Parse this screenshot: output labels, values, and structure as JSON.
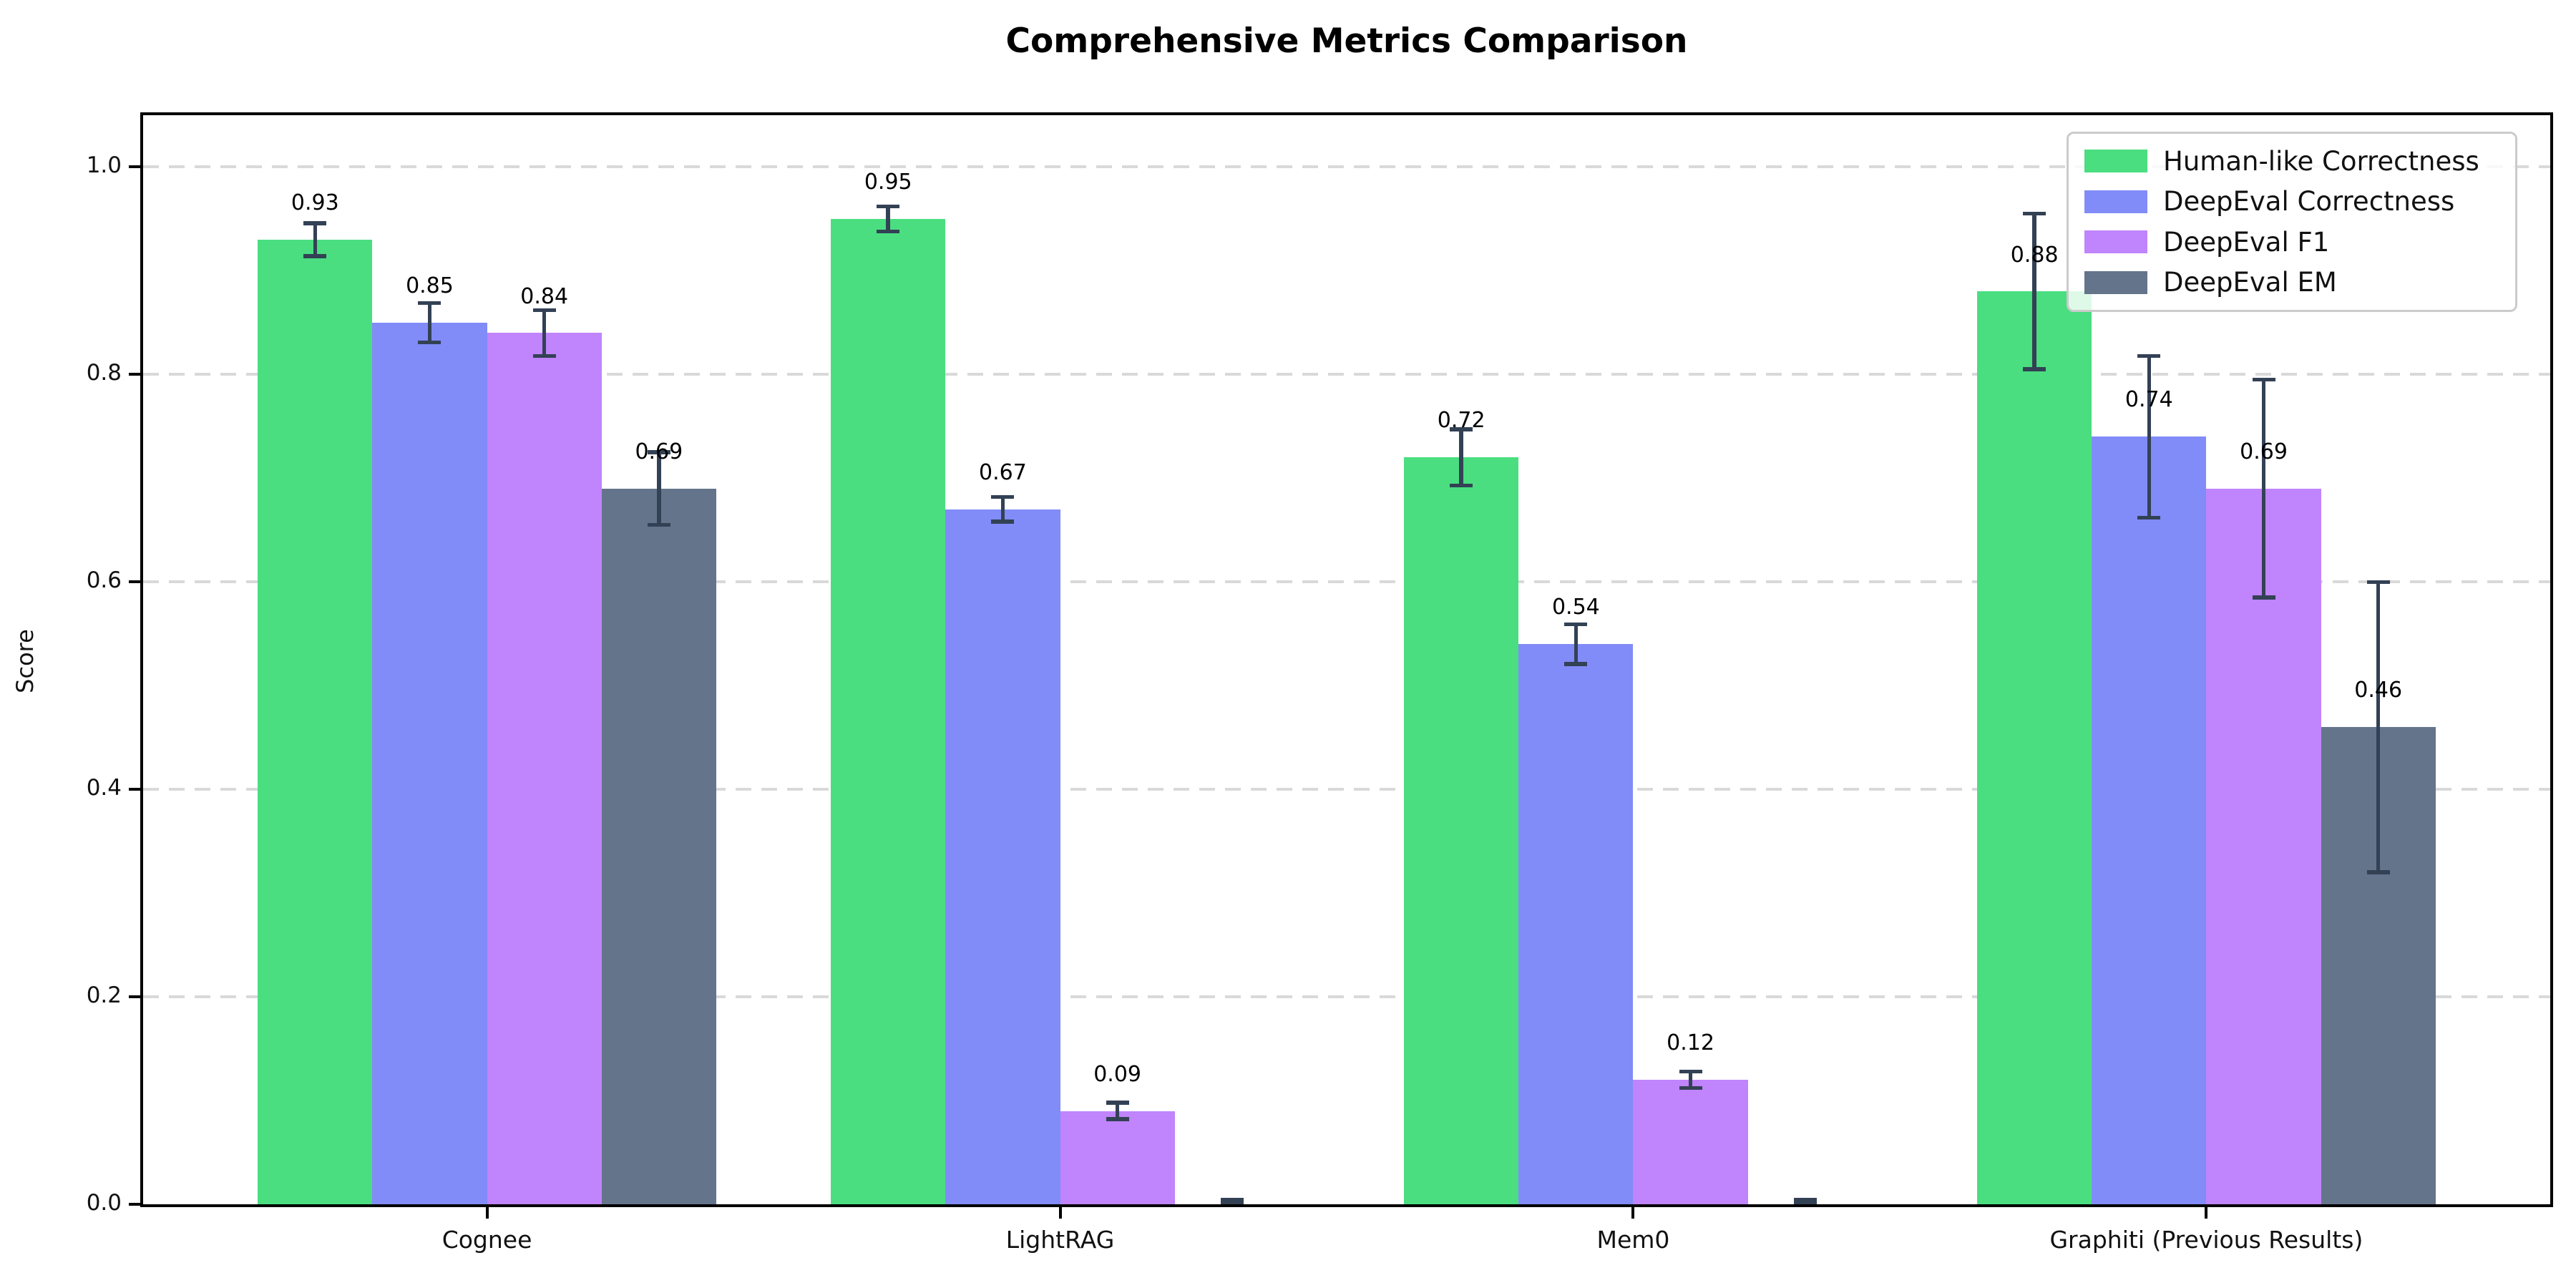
{
  "chart_data": {
    "type": "bar",
    "title": "Comprehensive Metrics Comparison",
    "xlabel": "",
    "ylabel": "Score",
    "categories": [
      "Cognee",
      "LightRAG",
      "Mem0",
      "Graphiti (Previous Results)"
    ],
    "series": [
      {
        "name": "Human-like Correctness",
        "color": "#4ade80",
        "values": [
          0.93,
          0.95,
          0.72,
          0.88
        ],
        "errors": [
          0.016,
          0.012,
          0.027,
          0.075
        ],
        "labels": [
          "0.93",
          "0.95",
          "0.72",
          "0.88"
        ]
      },
      {
        "name": "DeepEval Correctness",
        "color": "#818cf8",
        "values": [
          0.85,
          0.67,
          0.54,
          0.74
        ],
        "errors": [
          0.019,
          0.012,
          0.019,
          0.078
        ],
        "labels": [
          "0.85",
          "0.67",
          "0.54",
          "0.74"
        ]
      },
      {
        "name": "DeepEval F1",
        "color": "#c084fc",
        "values": [
          0.84,
          0.09,
          0.12,
          0.69
        ],
        "errors": [
          0.022,
          0.008,
          0.008,
          0.105
        ],
        "labels": [
          "0.84",
          "0.09",
          "0.12",
          "0.69"
        ]
      },
      {
        "name": "DeepEval EM",
        "color": "#64748b",
        "values": [
          0.69,
          0.0,
          0.0,
          0.46
        ],
        "errors": [
          0.035,
          0.004,
          0.004,
          0.14
        ],
        "labels": [
          "0.69",
          "",
          "",
          "0.46"
        ]
      }
    ],
    "error_bar_color": "#334155",
    "ylim": [
      0,
      1.05
    ],
    "yticks": [
      0.0,
      0.2,
      0.4,
      0.6,
      0.8,
      1.0
    ],
    "ytick_labels": [
      "0.0",
      "0.2",
      "0.4",
      "0.6",
      "0.8",
      "1.0"
    ],
    "grid": "horizontal dashed",
    "grid_color": "#d9d9d9",
    "legend_position": "upper right",
    "bar_width_units": 0.2,
    "group_offsets": [
      -0.3,
      -0.1,
      0.1,
      0.3
    ]
  }
}
